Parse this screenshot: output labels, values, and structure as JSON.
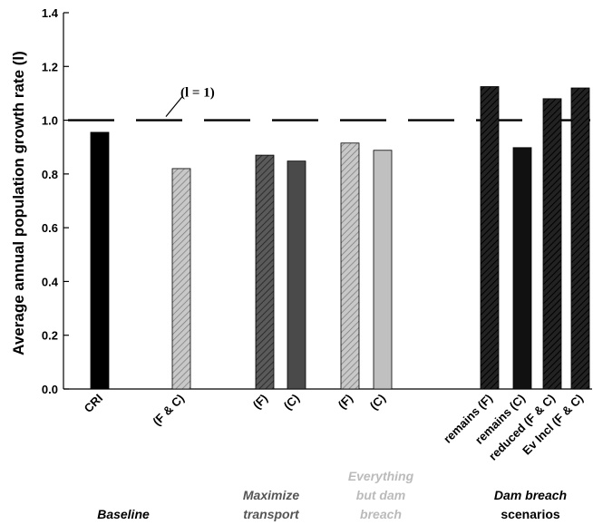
{
  "chart_data": {
    "type": "bar",
    "title": "",
    "xlabel": "",
    "ylabel": "Average annual population growth rate (l)",
    "ylim": [
      0,
      1.4
    ],
    "yticks": [
      "0.0",
      "0.2",
      "0.4",
      "0.6",
      "0.8",
      "1.0",
      "1.2",
      "1.4"
    ],
    "reference_line": {
      "value": 1.0,
      "label": "(l = 1)",
      "style": "dashed"
    },
    "grid": false,
    "bars": [
      {
        "label": "CRI",
        "value": 0.955,
        "fill": "#000000",
        "pattern": "solid",
        "group": 0
      },
      {
        "label": "(F & C)",
        "value": 0.82,
        "fill": "#c0c0c0",
        "pattern": "hatch",
        "group": 0
      },
      {
        "label": "(F)",
        "value": 0.87,
        "fill": "#555555",
        "pattern": "hatch",
        "group": 1
      },
      {
        "label": "(C)",
        "value": 0.848,
        "fill": "#4a4a4a",
        "pattern": "solid",
        "group": 1
      },
      {
        "label": "(F)",
        "value": 0.915,
        "fill": "#c0c0c0",
        "pattern": "hatch",
        "group": 2
      },
      {
        "label": "(C)",
        "value": 0.888,
        "fill": "#c0c0c0",
        "pattern": "solid",
        "group": 2
      },
      {
        "label": "remains (F)",
        "value": 1.125,
        "fill": "#1a1a1a",
        "pattern": "hatch",
        "group": 3
      },
      {
        "label": "remains (C)",
        "value": 0.898,
        "fill": "#111111",
        "pattern": "solid",
        "group": 3
      },
      {
        "label": "reduced (F & C)",
        "value": 1.08,
        "fill": "#1a1a1a",
        "pattern": "hatch",
        "group": 3
      },
      {
        "label": "Ev Incl (F & C)",
        "value": 1.12,
        "fill": "#1a1a1a",
        "pattern": "hatch",
        "group": 3
      }
    ],
    "groups": [
      {
        "lines": [
          "",
          "",
          "Baseline"
        ],
        "color": "#000000",
        "italic": true
      },
      {
        "lines": [
          "",
          "Maximize",
          "transport"
        ],
        "color": "#555555",
        "italic": true
      },
      {
        "lines": [
          "Everything",
          "but dam",
          "breach"
        ],
        "color": "#bbbbbb",
        "italic": true
      },
      {
        "lines": [
          "",
          "Dam breach",
          "scenarios"
        ],
        "color": "#000000",
        "italic": true,
        "last_upright": true
      }
    ]
  }
}
